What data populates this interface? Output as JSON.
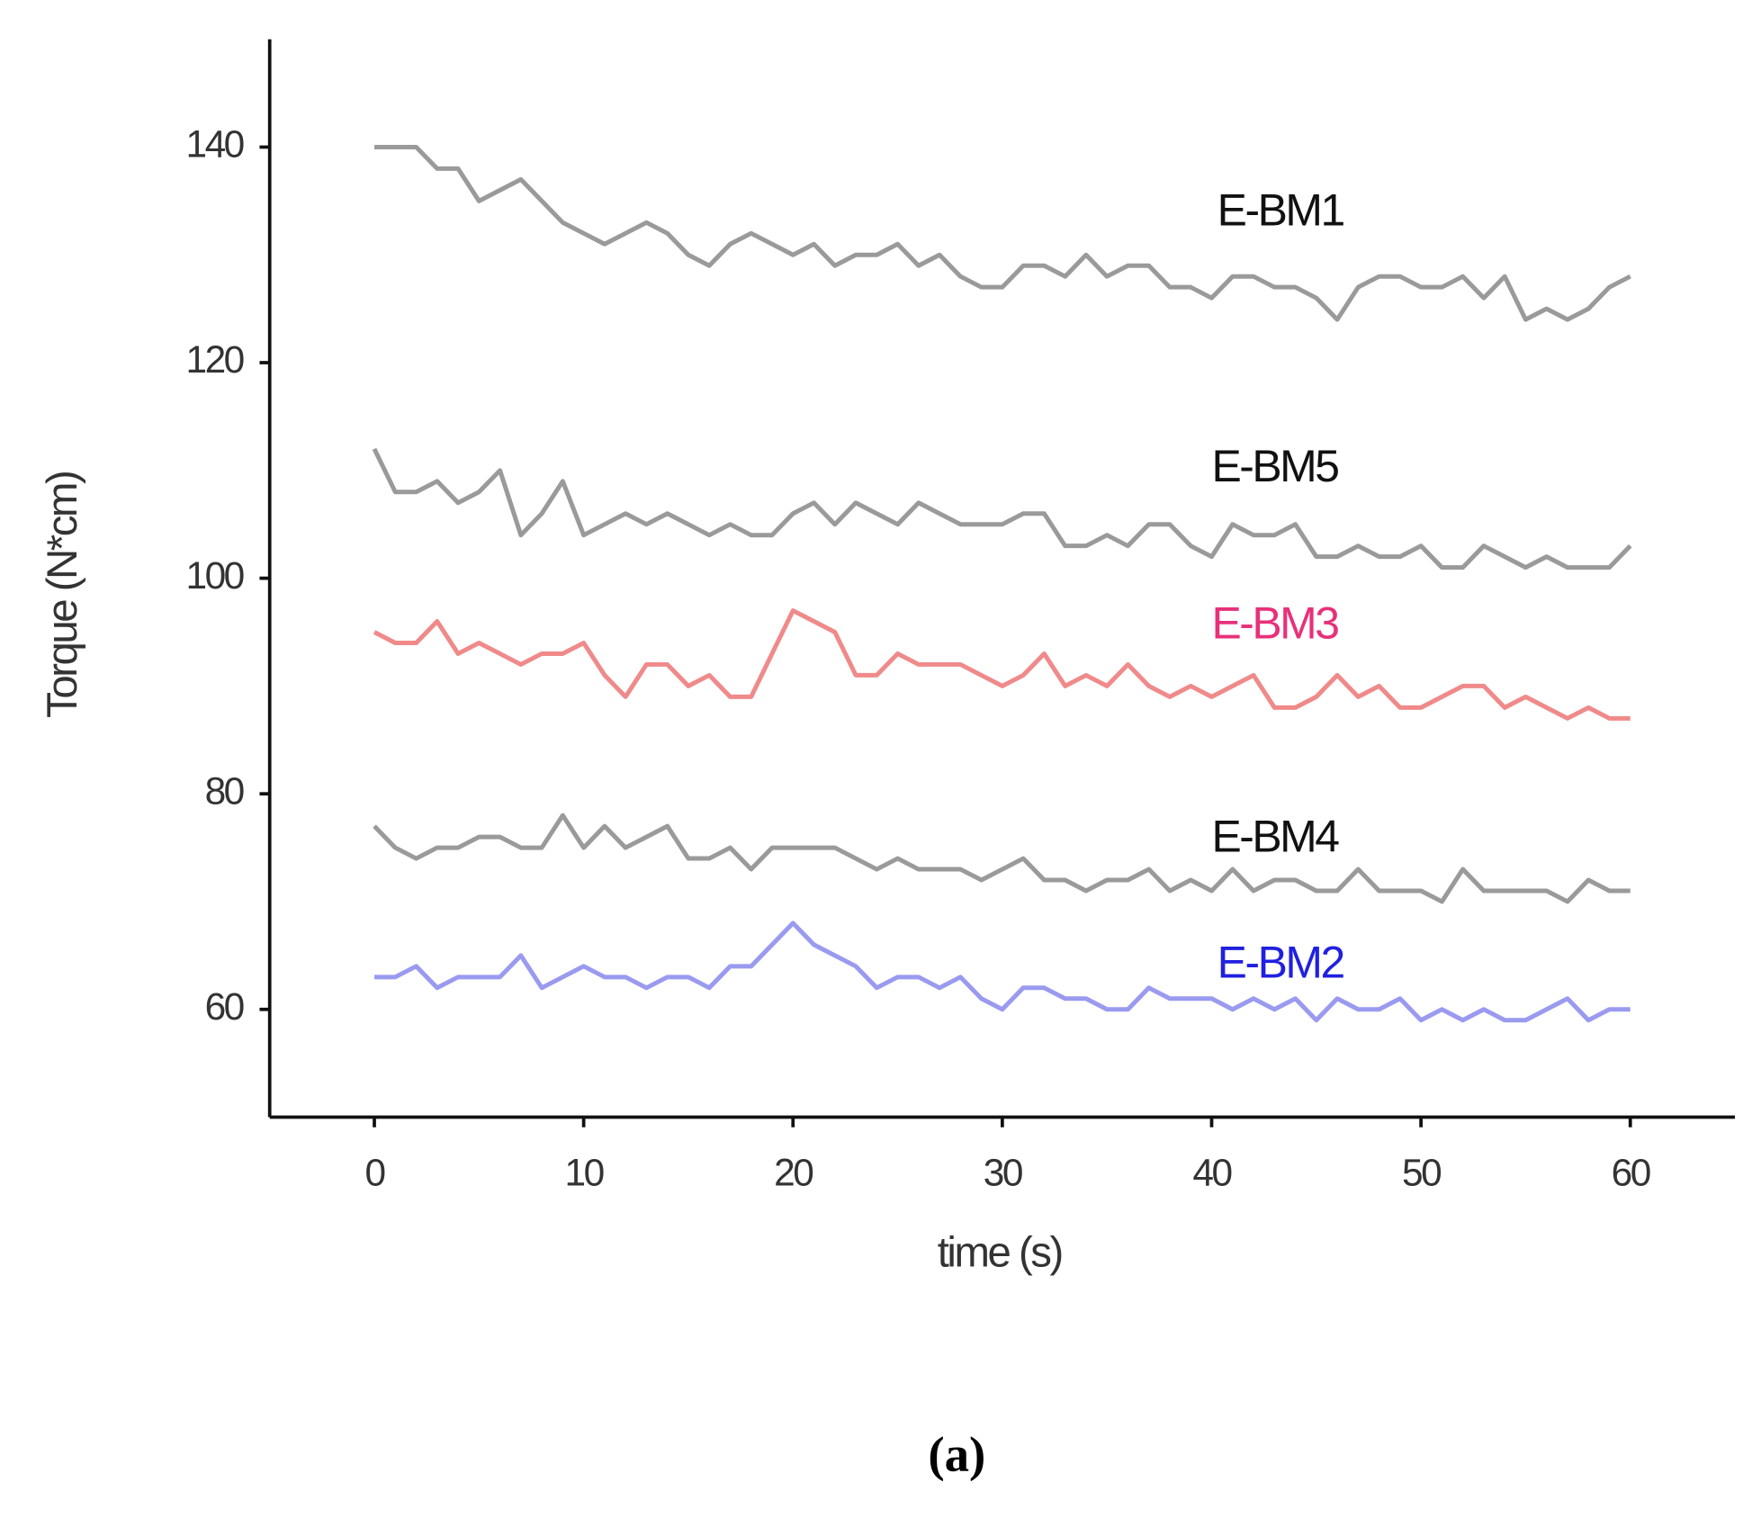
{
  "chart_data": {
    "type": "line",
    "xlabel": "time (s)",
    "ylabel": "Torque (N*cm)",
    "caption": "(a)",
    "x": [
      0,
      1,
      2,
      3,
      4,
      5,
      6,
      7,
      8,
      9,
      10,
      11,
      12,
      13,
      14,
      15,
      16,
      17,
      18,
      19,
      20,
      21,
      22,
      23,
      24,
      25,
      26,
      27,
      28,
      29,
      30,
      31,
      32,
      33,
      34,
      35,
      36,
      37,
      38,
      39,
      40,
      41,
      42,
      43,
      44,
      45,
      46,
      47,
      48,
      49,
      50,
      51,
      52,
      53,
      54,
      55,
      56,
      57,
      58,
      59,
      60
    ],
    "series": [
      {
        "name": "E-BM1",
        "color": "#9a9a9a",
        "label_color": "#111111",
        "values": [
          140,
          140,
          140,
          138,
          138,
          135,
          136,
          137,
          135,
          133,
          132,
          131,
          132,
          133,
          132,
          130,
          129,
          131,
          132,
          131,
          130,
          131,
          129,
          130,
          130,
          131,
          129,
          130,
          128,
          127,
          127,
          129,
          129,
          128,
          130,
          128,
          129,
          129,
          127,
          127,
          126,
          128,
          128,
          127,
          127,
          126,
          124,
          127,
          128,
          128,
          127,
          127,
          128,
          126,
          128,
          124,
          125,
          124,
          125,
          127,
          128
        ]
      },
      {
        "name": "E-BM5",
        "color": "#9a9a9a",
        "label_color": "#111111",
        "values": [
          112,
          108,
          108,
          109,
          107,
          108,
          110,
          104,
          106,
          109,
          104,
          105,
          106,
          105,
          106,
          105,
          104,
          105,
          104,
          104,
          106,
          107,
          105,
          107,
          106,
          105,
          107,
          106,
          105,
          105,
          105,
          106,
          106,
          103,
          103,
          104,
          103,
          105,
          105,
          103,
          102,
          105,
          104,
          104,
          105,
          102,
          102,
          103,
          102,
          102,
          103,
          101,
          101,
          103,
          102,
          101,
          102,
          101,
          101,
          101,
          103
        ]
      },
      {
        "name": "E-BM3",
        "color": "#f08a8a",
        "label_color": "#e8307a",
        "values": [
          95,
          94,
          94,
          96,
          93,
          94,
          93,
          92,
          93,
          93,
          94,
          91,
          89,
          92,
          92,
          90,
          91,
          89,
          89,
          93,
          97,
          96,
          95,
          91,
          91,
          93,
          92,
          92,
          92,
          91,
          90,
          91,
          93,
          90,
          91,
          90,
          92,
          90,
          89,
          90,
          89,
          90,
          91,
          88,
          88,
          89,
          91,
          89,
          90,
          88,
          88,
          89,
          90,
          90,
          88,
          89,
          88,
          87,
          88,
          87,
          87
        ]
      },
      {
        "name": "E-BM4",
        "color": "#9a9a9a",
        "label_color": "#111111",
        "values": [
          77,
          75,
          74,
          75,
          75,
          76,
          76,
          75,
          75,
          78,
          75,
          77,
          75,
          76,
          77,
          74,
          74,
          75,
          73,
          75,
          75,
          75,
          75,
          74,
          73,
          74,
          73,
          73,
          73,
          72,
          73,
          74,
          72,
          72,
          71,
          72,
          72,
          73,
          71,
          72,
          71,
          73,
          71,
          72,
          72,
          71,
          71,
          73,
          71,
          71,
          71,
          70,
          73,
          71,
          71,
          71,
          71,
          70,
          72,
          71,
          71
        ]
      },
      {
        "name": "E-BM2",
        "color": "#9a9af0",
        "label_color": "#2020e0",
        "values": [
          63,
          63,
          64,
          62,
          63,
          63,
          63,
          65,
          62,
          63,
          64,
          63,
          63,
          62,
          63,
          63,
          62,
          64,
          64,
          66,
          68,
          66,
          65,
          64,
          62,
          63,
          63,
          62,
          63,
          61,
          60,
          62,
          62,
          61,
          61,
          60,
          60,
          62,
          61,
          61,
          61,
          60,
          61,
          60,
          61,
          59,
          61,
          60,
          60,
          61,
          59,
          60,
          59,
          60,
          59,
          59,
          60,
          61,
          59,
          60,
          60
        ]
      }
    ],
    "xlim": [
      -5,
      65
    ],
    "ylim": [
      50,
      150
    ],
    "xticks": [
      0,
      10,
      20,
      30,
      40,
      50,
      60
    ],
    "yticks": [
      60,
      80,
      100,
      120,
      140
    ]
  }
}
